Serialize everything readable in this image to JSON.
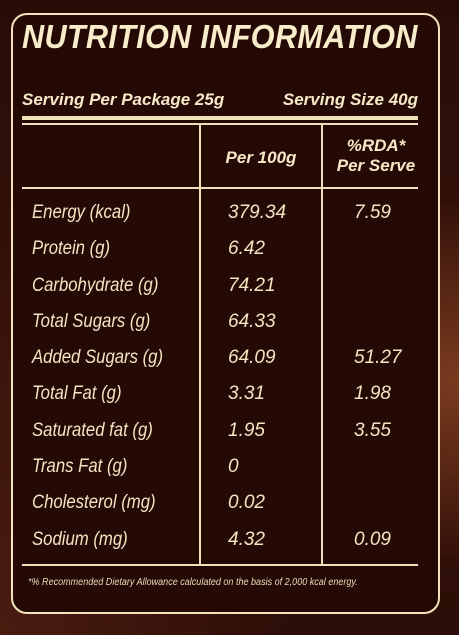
{
  "title": "NUTRITION INFORMATION",
  "serving": {
    "per_package": "Serving Per Package 25g",
    "size": "Serving Size 40g"
  },
  "columns": {
    "per100": "Per 100g",
    "rda_line1": "%RDA*",
    "rda_line2": "Per Serve"
  },
  "rows": [
    {
      "label": "Energy (kcal)",
      "per100": "379.34",
      "rda": "7.59"
    },
    {
      "label": "Protein (g)",
      "per100": "6.42",
      "rda": ""
    },
    {
      "label": "Carbohydrate (g)",
      "per100": "74.21",
      "rda": ""
    },
    {
      "label": "Total Sugars (g)",
      "per100": "64.33",
      "rda": ""
    },
    {
      "label": "Added Sugars (g)",
      "per100": "64.09",
      "rda": "51.27"
    },
    {
      "label": "Total Fat (g)",
      "per100": "3.31",
      "rda": "1.98"
    },
    {
      "label": "Saturated fat (g)",
      "per100": "1.95",
      "rda": "3.55"
    },
    {
      "label": "Trans Fat (g)",
      "per100": "0",
      "rda": ""
    },
    {
      "label": "Cholesterol (mg)",
      "per100": "0.02",
      "rda": ""
    },
    {
      "label": "Sodium (mg)",
      "per100": "4.32",
      "rda": "0.09"
    }
  ],
  "footnote": "*% Recommended Dietary Allowance calculated on the basis of 2,000 kcal energy."
}
